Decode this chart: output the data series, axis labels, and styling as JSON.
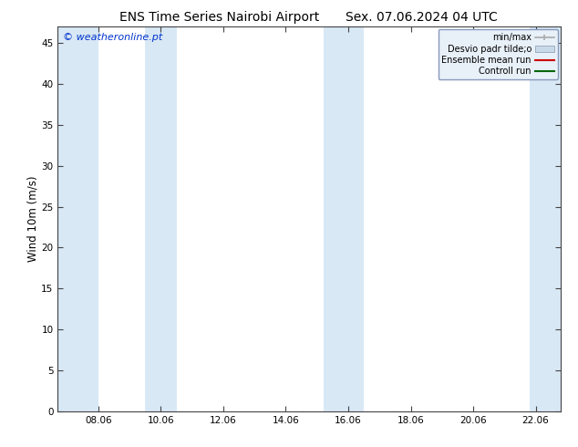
{
  "title_left": "ENS Time Series Nairobi Airport",
  "title_right": "Sex. 07.06.2024 04 UTC",
  "ylabel": "Wind 10m (m/s)",
  "watermark": "© weatheronline.pt",
  "watermark_color": "#0033cc",
  "ylim": [
    0,
    47
  ],
  "yticks": [
    0,
    5,
    10,
    15,
    20,
    25,
    30,
    35,
    40,
    45
  ],
  "x_tick_labels": [
    "08.06",
    "10.06",
    "12.06",
    "14.06",
    "16.06",
    "18.06",
    "20.06",
    "22.06"
  ],
  "x_tick_positions": [
    1,
    3,
    5,
    7,
    9,
    11,
    13,
    15
  ],
  "xlim": [
    -0.3,
    15.8
  ],
  "shade_bands": [
    [
      -0.3,
      1.0
    ],
    [
      2.5,
      3.5
    ],
    [
      8.2,
      9.5
    ],
    [
      14.8,
      15.8
    ]
  ],
  "shade_color": "#d8e8f5",
  "background_color": "#ffffff",
  "title_fontsize": 10,
  "tick_fontsize": 7.5,
  "ylabel_fontsize": 8.5,
  "watermark_fontsize": 8,
  "legend_fontsize": 7,
  "legend_line_colors": [
    "#aaaaaa",
    "#c8daea",
    "#cc0000",
    "#006600"
  ]
}
